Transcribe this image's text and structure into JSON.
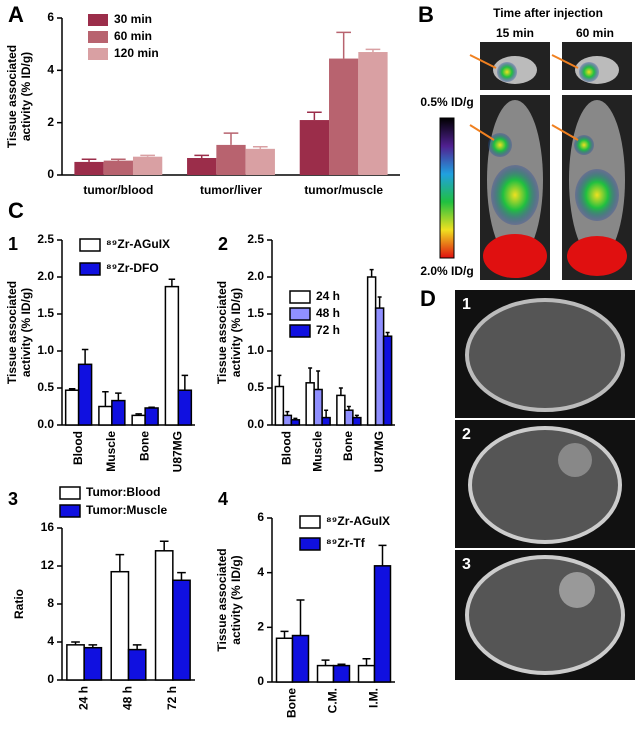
{
  "panel_labels": [
    "A",
    "B",
    "C",
    "D"
  ],
  "images": {
    "b_title": "Time after injection",
    "b_times": [
      "15 min",
      "60 min"
    ],
    "b_scale": [
      "0.5% ID/g",
      "2.0% ID/g"
    ],
    "d_numbers": [
      "1",
      "2",
      "3"
    ]
  },
  "chart_data": [
    {
      "type": "bar",
      "ylabel": [
        "Tissue associated",
        "activity (% ID/g)"
      ],
      "categories": [
        "tumor/blood",
        "tumor/liver",
        "tumor/muscle"
      ],
      "series": [
        {
          "name": "30 min",
          "color": "#9b2d4a",
          "values": [
            0.5,
            0.65,
            2.1
          ],
          "errors": [
            0.1,
            0.1,
            0.3
          ]
        },
        {
          "name": "60 min",
          "color": "#b8636f",
          "values": [
            0.55,
            1.15,
            4.45
          ],
          "errors": [
            0.05,
            0.45,
            1.0
          ]
        },
        {
          "name": "120 min",
          "color": "#d9a0a3",
          "values": [
            0.7,
            1.0,
            4.7
          ],
          "errors": [
            0.05,
            0.08,
            0.1
          ]
        }
      ],
      "ylim": [
        0,
        6
      ],
      "yticks": [
        0,
        2,
        4,
        6
      ]
    },
    {
      "type": "bar",
      "label": "1",
      "ylabel": [
        "Tissue associated",
        "activity (% ID/g)"
      ],
      "categories": [
        "Blood",
        "Muscle",
        "Bone",
        "U87MG"
      ],
      "series": [
        {
          "name": "⁸⁹Zr-AGuIX",
          "color": "#ffffff",
          "values": [
            0.47,
            0.25,
            0.13,
            1.87
          ],
          "errors": [
            0.02,
            0.2,
            0.02,
            0.1
          ]
        },
        {
          "name": "⁸⁹Zr-DFO",
          "color": "#1010e0",
          "values": [
            0.82,
            0.33,
            0.23,
            0.47
          ],
          "errors": [
            0.2,
            0.1,
            0.01,
            0.2
          ]
        }
      ],
      "ylim": [
        0,
        2.5
      ],
      "yticks": [
        {
          "value": 0,
          "label": "0.0"
        },
        0.5,
        {
          "value": 1,
          "label": "1.0"
        },
        1.5,
        {
          "value": 2,
          "label": "2.0"
        },
        2.5
      ]
    },
    {
      "type": "bar",
      "label": "2",
      "ylabel": [
        "Tissue associated",
        "activity (% ID/g)"
      ],
      "categories": [
        "Blood",
        "Muscle",
        "Bone",
        "U87MG"
      ],
      "series": [
        {
          "name": "24 h",
          "color": "#ffffff",
          "values": [
            0.52,
            0.57,
            0.4,
            2.0
          ],
          "errors": [
            0.15,
            0.2,
            0.1,
            0.1
          ]
        },
        {
          "name": "48 h",
          "color": "#8f8fff",
          "values": [
            0.13,
            0.48,
            0.2,
            1.58
          ],
          "errors": [
            0.05,
            0.25,
            0.05,
            0.15
          ]
        },
        {
          "name": "72 h",
          "color": "#1010e0",
          "values": [
            0.07,
            0.1,
            0.1,
            1.2
          ],
          "errors": [
            0.02,
            0.1,
            0.03,
            0.05
          ]
        }
      ],
      "ylim": [
        0,
        2.5
      ],
      "yticks": [
        {
          "value": 0,
          "label": "0.0"
        },
        0.5,
        {
          "value": 1,
          "label": "1.0"
        },
        1.5,
        {
          "value": 2,
          "label": "2.0"
        },
        2.5
      ]
    },
    {
      "type": "bar",
      "label": "3",
      "ylabel": [
        "Ratio"
      ],
      "categories": [
        "24 h",
        "48 h",
        "72 h"
      ],
      "series": [
        {
          "name": "Tumor:Blood",
          "color": "#ffffff",
          "values": [
            3.7,
            11.4,
            13.6
          ],
          "errors": [
            0.3,
            1.8,
            1.0
          ]
        },
        {
          "name": "Tumor:Muscle",
          "color": "#1010e0",
          "values": [
            3.4,
            3.2,
            10.5
          ],
          "errors": [
            0.3,
            0.5,
            0.8
          ]
        }
      ],
      "ylim": [
        0,
        16
      ],
      "yticks": [
        0,
        4,
        8,
        12,
        16
      ]
    },
    {
      "type": "bar",
      "label": "4",
      "ylabel": [
        "Tissue associated",
        "activity (% ID/g)"
      ],
      "categories": [
        "Bone",
        "C.M.",
        "I.M."
      ],
      "series": [
        {
          "name": "⁸⁹Zr-AGuIX",
          "color": "#ffffff",
          "values": [
            1.6,
            0.6,
            0.6
          ],
          "errors": [
            0.25,
            0.2,
            0.25
          ]
        },
        {
          "name": "⁸⁹Zr-Tf",
          "color": "#1010e0",
          "values": [
            1.7,
            0.6,
            4.25
          ],
          "errors": [
            1.3,
            0.05,
            0.75
          ]
        }
      ],
      "ylim": [
        0,
        6
      ],
      "yticks": [
        0,
        2,
        4,
        6
      ]
    }
  ]
}
